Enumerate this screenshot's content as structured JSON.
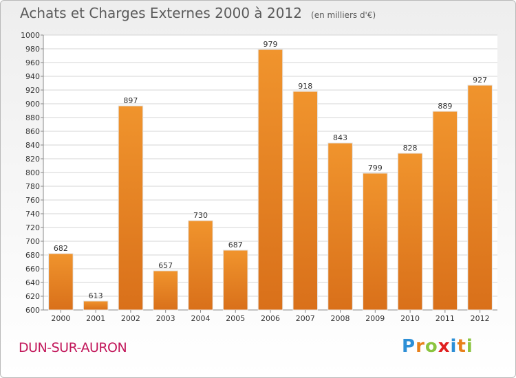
{
  "header": {
    "title": "Achats et Charges Externes 2000 à 2012",
    "unit": "(en milliers d'€)"
  },
  "footer": {
    "commune": "DUN-SUR-AURON",
    "brand_letters": [
      "P",
      "r",
      "o",
      "x",
      "i",
      "t",
      "i"
    ],
    "brand_colors": [
      "#2d8fd6",
      "#e8801a",
      "#8bc43f",
      "#e02020",
      "#2d8fd6",
      "#e8801a",
      "#8bc43f"
    ]
  },
  "chart_data": {
    "type": "bar",
    "title": "Achats et Charges Externes 2000 à 2012",
    "subtitle": "(en milliers d'€)",
    "categories": [
      "2000",
      "2001",
      "2002",
      "2003",
      "2004",
      "2005",
      "2006",
      "2007",
      "2008",
      "2009",
      "2010",
      "2011",
      "2012"
    ],
    "values": [
      682,
      613,
      897,
      657,
      730,
      687,
      979,
      918,
      843,
      799,
      828,
      889,
      927
    ],
    "ylim": [
      600,
      1000
    ],
    "yticks": [
      600,
      620,
      640,
      660,
      680,
      700,
      720,
      740,
      760,
      780,
      800,
      820,
      840,
      860,
      880,
      900,
      920,
      940,
      960,
      980,
      1000
    ],
    "grid": true,
    "bar_color": "#f0942d",
    "bar_color_dark": "#d9701a"
  }
}
